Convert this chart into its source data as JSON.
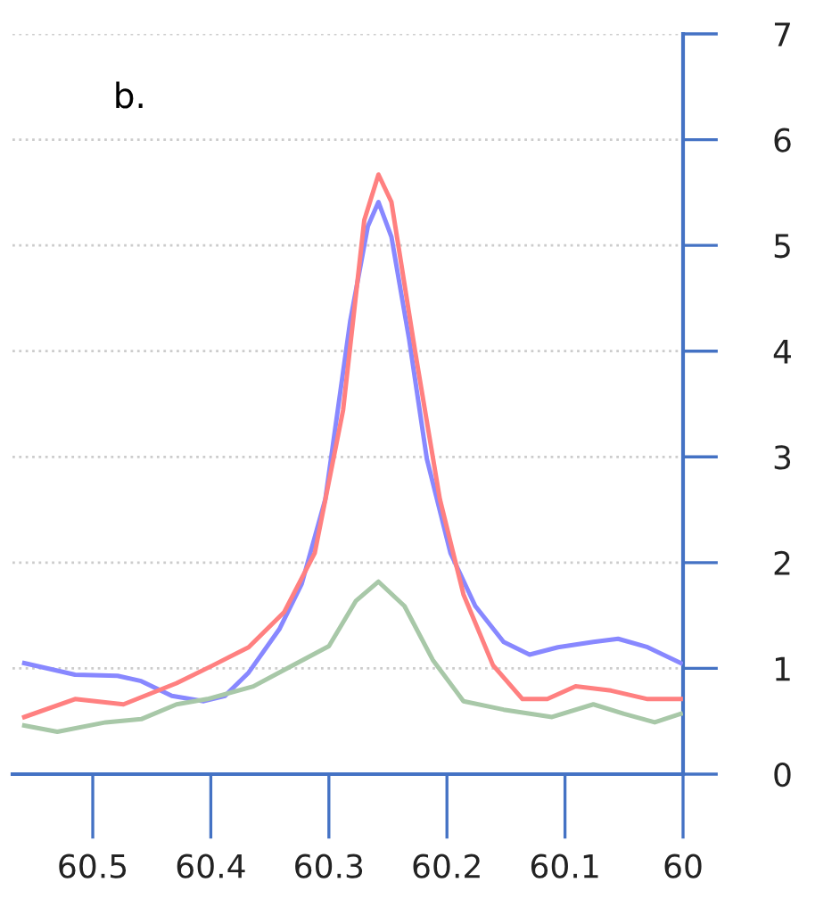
{
  "chart_data": {
    "type": "line",
    "annotations": [
      "b."
    ],
    "xlim": [
      60.568,
      60.0
    ],
    "xticks": [
      60.5,
      60.4,
      60.3,
      60.2,
      60.1,
      60
    ],
    "ylim": [
      0,
      7
    ],
    "yticks": [
      0,
      1,
      2,
      3,
      4,
      5,
      6,
      7
    ],
    "grid": "y",
    "line_style": "solid",
    "series": [
      {
        "color": "#8888ff",
        "x": [
          60.558,
          60.515,
          60.479,
          60.459,
          60.433,
          60.406,
          60.388,
          60.368,
          60.342,
          60.323,
          60.303,
          60.282,
          60.267,
          60.258,
          60.247,
          60.232,
          60.217,
          60.197,
          60.176,
          60.152,
          60.13,
          60.106,
          60.076,
          60.055,
          60.03,
          60.002
        ],
        "values": [
          1.05,
          0.94,
          0.93,
          0.88,
          0.74,
          0.69,
          0.74,
          0.96,
          1.37,
          1.8,
          2.6,
          4.28,
          5.18,
          5.41,
          5.08,
          4.11,
          2.98,
          2.09,
          1.59,
          1.25,
          1.13,
          1.2,
          1.25,
          1.28,
          1.2,
          1.05
        ]
      },
      {
        "color": "#ff8080",
        "x": [
          60.558,
          60.515,
          60.474,
          60.429,
          60.398,
          60.368,
          60.338,
          60.312,
          60.288,
          60.27,
          60.258,
          60.247,
          60.227,
          60.206,
          60.186,
          60.161,
          60.136,
          60.115,
          60.091,
          60.061,
          60.03,
          60.002
        ],
        "values": [
          0.54,
          0.71,
          0.66,
          0.86,
          1.03,
          1.2,
          1.53,
          2.09,
          3.44,
          5.24,
          5.67,
          5.41,
          4.0,
          2.6,
          1.7,
          1.03,
          0.71,
          0.71,
          0.83,
          0.79,
          0.71,
          0.71
        ]
      },
      {
        "color": "#a8c8a8",
        "x": [
          60.558,
          60.53,
          60.489,
          60.459,
          60.429,
          60.403,
          60.364,
          60.327,
          60.3,
          60.277,
          60.258,
          60.236,
          60.212,
          60.186,
          60.152,
          60.111,
          60.076,
          60.05,
          60.024,
          60.002
        ],
        "values": [
          0.46,
          0.4,
          0.49,
          0.52,
          0.66,
          0.71,
          0.83,
          1.05,
          1.21,
          1.64,
          1.82,
          1.59,
          1.08,
          0.69,
          0.61,
          0.54,
          0.66,
          0.57,
          0.49,
          0.57
        ]
      }
    ]
  }
}
